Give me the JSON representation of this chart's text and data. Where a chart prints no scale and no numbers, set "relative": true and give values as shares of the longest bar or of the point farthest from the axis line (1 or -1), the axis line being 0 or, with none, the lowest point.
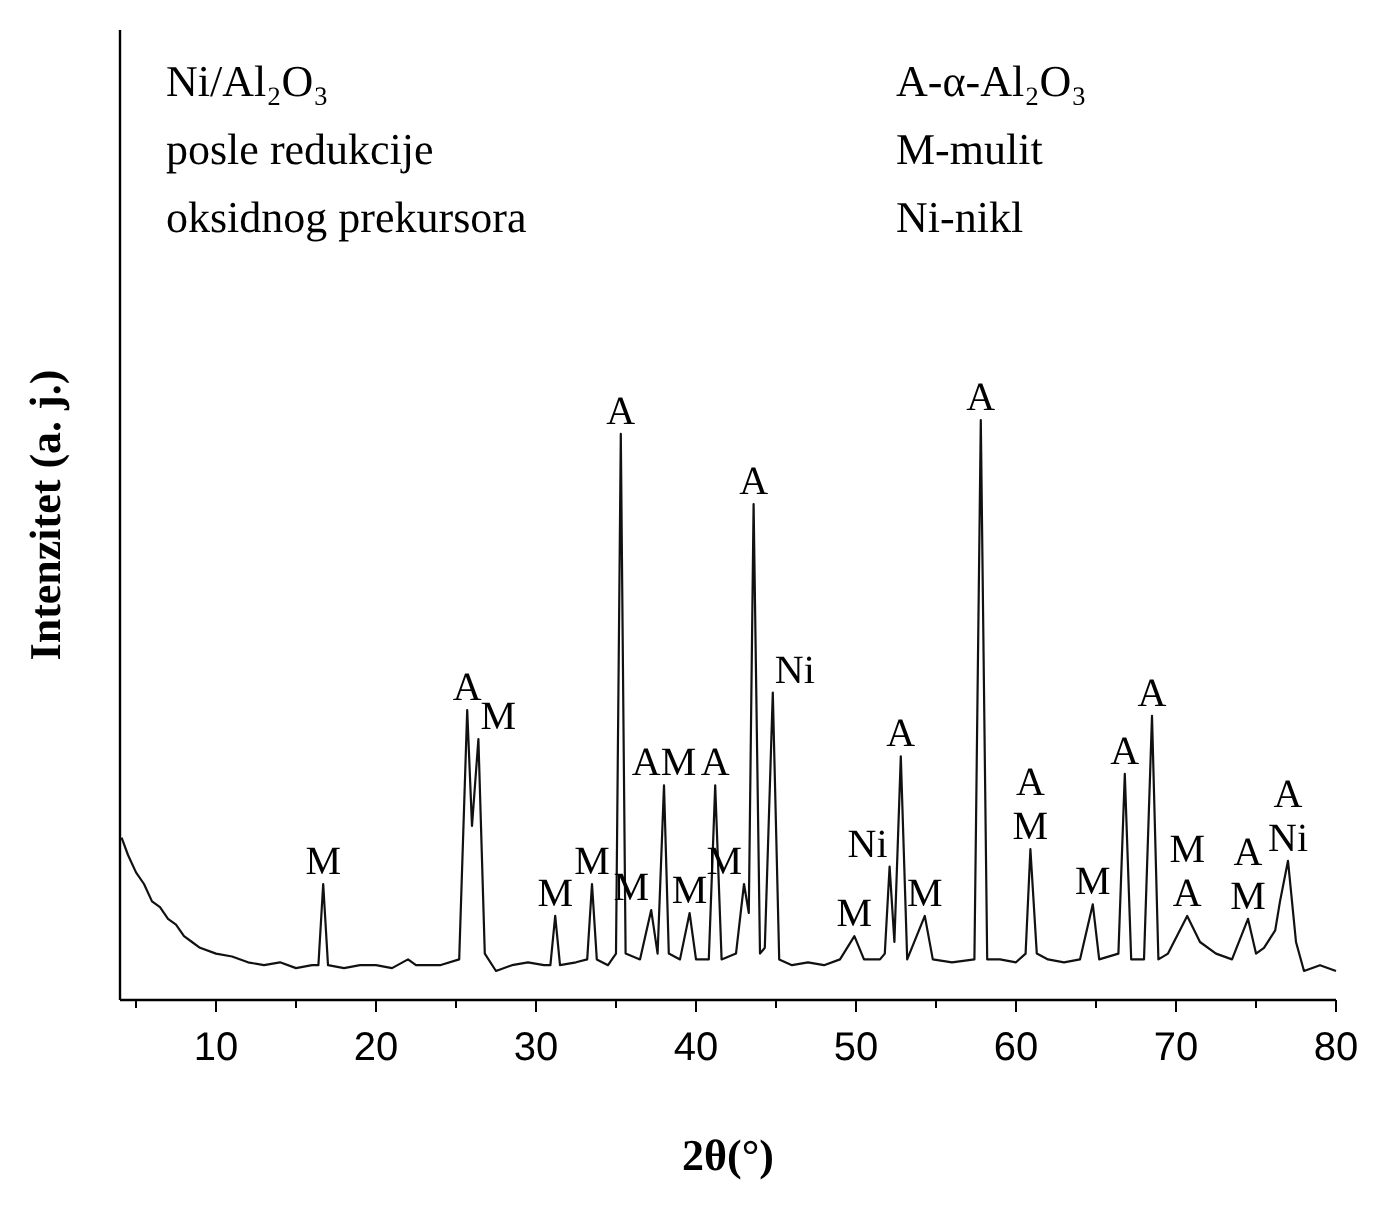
{
  "chart_data": {
    "type": "line",
    "relative": true,
    "xlabel": "2θ(°)",
    "ylabel": "Intenzitet (a. j.)",
    "xlim": [
      4,
      80
    ],
    "xticks": [
      {
        "value": 5,
        "label": null
      },
      10,
      {
        "value": 15,
        "label": null
      },
      20,
      {
        "value": 25,
        "label": null
      },
      30,
      {
        "value": 35,
        "label": null
      },
      40,
      {
        "value": 45,
        "label": null
      },
      50,
      {
        "value": 55,
        "label": null
      },
      60,
      {
        "value": 65,
        "label": null
      },
      70,
      {
        "value": 75,
        "label": null
      },
      80
    ],
    "tick_labels": "x",
    "grid": false,
    "marker": "none",
    "line_style": "solid",
    "series": [
      {
        "color": "#111111",
        "x": [
          4.1,
          4.5,
          5,
          5.5,
          6,
          6.5,
          7,
          7.5,
          8,
          8.5,
          9,
          10,
          11,
          12,
          13,
          14,
          15,
          16,
          16.4,
          16.7,
          17,
          18,
          19,
          20,
          21,
          22,
          22.5,
          24,
          25.2,
          25.7,
          26.0,
          26.4,
          26.8,
          27.5,
          28.5,
          29.5,
          30.5,
          30.9,
          31.2,
          31.5,
          32.5,
          33.2,
          33.5,
          33.8,
          34.5,
          35.0,
          35.3,
          35.6,
          36.5,
          37.2,
          37.6,
          38.0,
          38.3,
          39.0,
          39.6,
          40.0,
          40.8,
          41.2,
          41.6,
          42.5,
          43.0,
          43.3,
          43.6,
          44.0,
          44.3,
          44.8,
          45.2,
          46,
          47,
          48,
          49,
          49.9,
          50.5,
          51.5,
          51.8,
          52.1,
          52.4,
          52.8,
          53.2,
          54.3,
          54.8,
          56,
          57.4,
          57.8,
          58.2,
          59,
          60,
          60.6,
          60.9,
          61.3,
          62,
          63,
          64,
          64.8,
          65.2,
          66.4,
          66.8,
          67.2,
          68.0,
          68.5,
          68.9,
          69.5,
          70.7,
          71.5,
          72.5,
          73.5,
          74.5,
          75.0,
          75.5,
          76.2,
          76.5,
          77.0,
          77.5,
          78,
          79,
          80
        ],
        "values": [
          0.28,
          0.25,
          0.22,
          0.2,
          0.17,
          0.16,
          0.14,
          0.13,
          0.11,
          0.1,
          0.09,
          0.08,
          0.075,
          0.065,
          0.06,
          0.065,
          0.055,
          0.06,
          0.06,
          0.2,
          0.06,
          0.055,
          0.06,
          0.06,
          0.055,
          0.07,
          0.06,
          0.06,
          0.07,
          0.5,
          0.3,
          0.45,
          0.08,
          0.05,
          0.06,
          0.065,
          0.06,
          0.06,
          0.145,
          0.06,
          0.065,
          0.07,
          0.2,
          0.07,
          0.06,
          0.08,
          0.976,
          0.08,
          0.07,
          0.155,
          0.08,
          0.37,
          0.08,
          0.07,
          0.15,
          0.07,
          0.07,
          0.37,
          0.07,
          0.08,
          0.2,
          0.15,
          0.855,
          0.08,
          0.09,
          0.53,
          0.07,
          0.06,
          0.065,
          0.06,
          0.07,
          0.11,
          0.07,
          0.07,
          0.08,
          0.23,
          0.1,
          0.42,
          0.07,
          0.145,
          0.07,
          0.065,
          0.07,
          1.0,
          0.07,
          0.07,
          0.065,
          0.08,
          0.26,
          0.08,
          0.07,
          0.065,
          0.07,
          0.165,
          0.07,
          0.08,
          0.39,
          0.07,
          0.07,
          0.49,
          0.07,
          0.08,
          0.145,
          0.1,
          0.08,
          0.07,
          0.14,
          0.08,
          0.09,
          0.12,
          0.17,
          0.24,
          0.1,
          0.05,
          0.06,
          0.05
        ]
      }
    ],
    "annotations": [
      "Ni/Al₂O₃",
      "posle redukcije",
      "oksidnog prekursora",
      "A-α-Al₂O₃",
      "M-mulit",
      "Ni-nikl",
      {
        "text": "M",
        "x": 16.7,
        "y": 0.2
      },
      {
        "text": "A",
        "x": 25.7,
        "y": 0.5
      },
      {
        "text": "M",
        "x": 26.4,
        "y": 0.45
      },
      {
        "text": "M",
        "x": 31.2,
        "y": 0.145
      },
      {
        "text": "M",
        "x": 33.5,
        "y": 0.2
      },
      {
        "text": "A",
        "x": 35.3,
        "y": 0.976
      },
      {
        "text": "M",
        "x": 37.2,
        "y": 0.155
      },
      {
        "text": "AM",
        "x": 38.0,
        "y": 0.37
      },
      {
        "text": "M",
        "x": 39.6,
        "y": 0.15
      },
      {
        "text": "A",
        "x": 41.2,
        "y": 0.37
      },
      {
        "text": "M",
        "x": 43.0,
        "y": 0.2
      },
      {
        "text": "A",
        "x": 43.6,
        "y": 0.855
      },
      {
        "text": "Ni",
        "x": 44.8,
        "y": 0.53
      },
      {
        "text": "M",
        "x": 49.9,
        "y": 0.11
      },
      {
        "text": "Ni",
        "x": 52.1,
        "y": 0.23
      },
      {
        "text": "A",
        "x": 52.8,
        "y": 0.42
      },
      {
        "text": "M",
        "x": 54.3,
        "y": 0.145
      },
      {
        "text": "A",
        "x": 57.8,
        "y": 1.0
      },
      {
        "text": "M",
        "x": 60.9,
        "y": 0.26
      },
      {
        "text": "A",
        "x": 60.9,
        "y": 0.26
      },
      {
        "text": "M",
        "x": 64.8,
        "y": 0.165
      },
      {
        "text": "A",
        "x": 66.8,
        "y": 0.39
      },
      {
        "text": "A",
        "x": 68.5,
        "y": 0.49
      },
      {
        "text": "A",
        "x": 70.7,
        "y": 0.145
      },
      {
        "text": "M",
        "x": 70.7,
        "y": 0.145
      },
      {
        "text": "M",
        "x": 74.5,
        "y": 0.14
      },
      {
        "text": "A",
        "x": 74.5,
        "y": 0.14
      },
      {
        "text": "Ni",
        "x": 77.0,
        "y": 0.24
      },
      {
        "text": "A",
        "x": 77.0,
        "y": 0.24
      }
    ]
  }
}
